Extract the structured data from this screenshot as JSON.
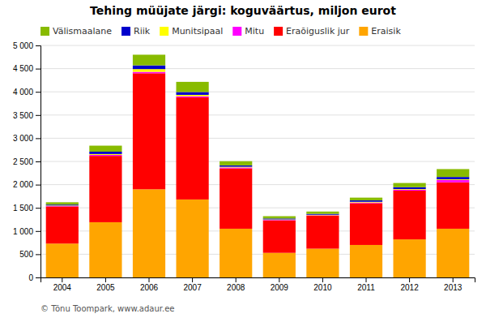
{
  "chart_data": {
    "type": "bar",
    "stacked": true,
    "title": "Tehing müüjate järgi: koguväärtus, miljon eurot",
    "categories": [
      "2004",
      "2005",
      "2006",
      "2007",
      "2008",
      "2009",
      "2010",
      "2011",
      "2012",
      "2013"
    ],
    "series": [
      {
        "name": "Eraisik",
        "color": "#FFA500",
        "values": [
          730,
          1190,
          1900,
          1680,
          1050,
          530,
          620,
          700,
          820,
          1050
        ]
      },
      {
        "name": "Eraõiguslik jur",
        "color": "#FF0000",
        "values": [
          800,
          1430,
          2500,
          2200,
          1300,
          700,
          710,
          900,
          1050,
          1000
        ]
      },
      {
        "name": "Mitu",
        "color": "#FF00FF",
        "values": [
          10,
          20,
          30,
          25,
          20,
          10,
          10,
          15,
          20,
          50
        ]
      },
      {
        "name": "Munitsipaal",
        "color": "#FFFF00",
        "values": [
          10,
          20,
          60,
          30,
          15,
          10,
          10,
          15,
          15,
          15
        ]
      },
      {
        "name": "Riik",
        "color": "#0000CC",
        "values": [
          20,
          50,
          80,
          60,
          30,
          20,
          20,
          30,
          40,
          50
        ]
      },
      {
        "name": "Välismaalane",
        "color": "#88BB00",
        "values": [
          50,
          130,
          230,
          220,
          90,
          50,
          50,
          60,
          90,
          170
        ]
      }
    ],
    "ylim": [
      0,
      5000
    ],
    "yticks": [
      0,
      500,
      {
        "value": 1000,
        "label": "1 000"
      },
      {
        "value": 1500,
        "label": "1 500"
      },
      {
        "value": 2000,
        "label": "2 000"
      },
      {
        "value": 2500,
        "label": "2 500"
      },
      {
        "value": 3000,
        "label": "3 000"
      },
      {
        "value": 3500,
        "label": "3 500"
      },
      {
        "value": 4000,
        "label": "4 000"
      },
      {
        "value": 4500,
        "label": "4 500"
      },
      {
        "value": 5000,
        "label": "5 000"
      }
    ],
    "grid": true,
    "legend": "upper left",
    "annotations": [
      "© Tõnu Toompark, www.adaur.ee"
    ]
  }
}
